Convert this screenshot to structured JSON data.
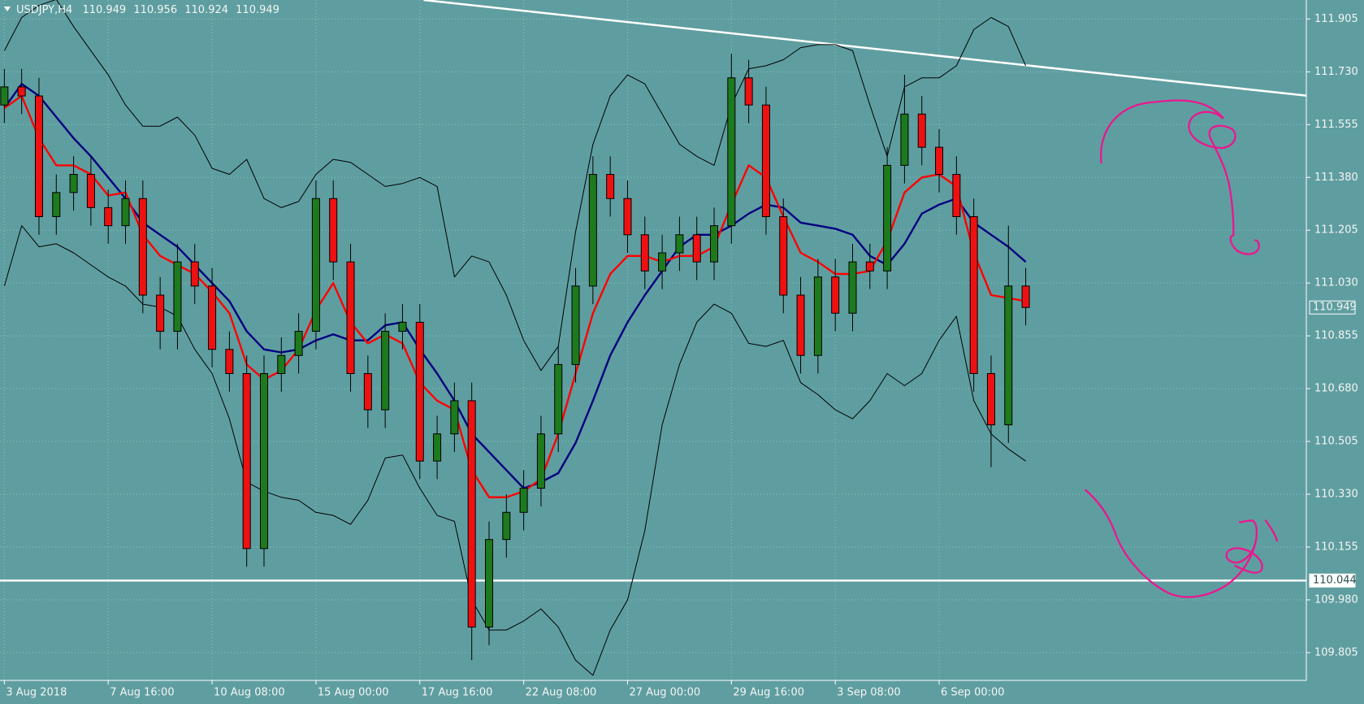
{
  "chart_data": {
    "type": "candlestick",
    "title": "USDJPY,H4",
    "ohlc": [
      110.949,
      110.956,
      110.924,
      110.949
    ],
    "categories": [
      "3 Aug 2018",
      null,
      null,
      null,
      null,
      null,
      "7 Aug 16:00",
      null,
      null,
      null,
      null,
      null,
      "10 Aug 08:00",
      null,
      null,
      null,
      null,
      null,
      "15 Aug 00:00",
      null,
      null,
      null,
      null,
      null,
      "17 Aug 16:00",
      null,
      null,
      null,
      null,
      null,
      "22 Aug 08:00",
      null,
      null,
      null,
      null,
      null,
      "27 Aug 00:00",
      null,
      null,
      null,
      null,
      null,
      "29 Aug 16:00",
      null,
      null,
      null,
      null,
      null,
      "3 Sep 08:00",
      null,
      null,
      null,
      null,
      null,
      "6 Sep 00:00",
      null,
      null,
      null,
      null,
      null
    ],
    "open": [
      111.62,
      111.68,
      111.65,
      111.25,
      111.33,
      111.39,
      111.28,
      111.22,
      111.31,
      110.99,
      110.87,
      111.1,
      111.02,
      110.81,
      110.73,
      110.15,
      110.73,
      110.79,
      110.87,
      111.31,
      111.1,
      110.73,
      110.61,
      110.87,
      110.9,
      110.44,
      110.53,
      110.64,
      109.89,
      110.18,
      110.27,
      110.35,
      110.53,
      110.76,
      111.02,
      111.39,
      111.31,
      111.19,
      111.07,
      111.13,
      111.19,
      111.1,
      111.22,
      111.71,
      111.62,
      111.25,
      110.99,
      110.79,
      111.05,
      110.93,
      111.1,
      111.07,
      111.42,
      111.59,
      111.48,
      111.39,
      111.25,
      110.73,
      110.56,
      111.02
    ],
    "high": [
      111.74,
      111.74,
      111.71,
      111.39,
      111.45,
      111.45,
      111.34,
      111.37,
      111.37,
      111.05,
      111.16,
      111.16,
      111.08,
      110.87,
      110.79,
      110.79,
      110.85,
      110.93,
      111.37,
      111.37,
      111.16,
      110.79,
      110.93,
      110.96,
      110.96,
      110.59,
      110.7,
      110.7,
      110.24,
      110.33,
      110.41,
      110.59,
      110.82,
      111.08,
      111.45,
      111.45,
      111.37,
      111.25,
      111.19,
      111.25,
      111.25,
      111.28,
      111.79,
      111.77,
      111.68,
      111.31,
      111.05,
      111.11,
      111.11,
      111.16,
      111.16,
      111.48,
      111.72,
      111.65,
      111.54,
      111.45,
      111.31,
      110.79,
      111.22,
      111.08
    ],
    "low": [
      111.56,
      111.59,
      111.19,
      111.19,
      111.27,
      111.22,
      111.16,
      111.16,
      110.93,
      110.81,
      110.81,
      110.96,
      110.75,
      110.67,
      110.09,
      110.09,
      110.67,
      110.73,
      110.81,
      111.04,
      110.67,
      110.55,
      110.55,
      110.81,
      110.38,
      110.38,
      110.47,
      109.78,
      109.83,
      110.12,
      110.21,
      110.29,
      110.47,
      110.7,
      110.96,
      111.25,
      111.13,
      111.01,
      111.01,
      111.07,
      111.04,
      111.04,
      111.16,
      111.56,
      111.19,
      110.93,
      110.73,
      110.73,
      110.87,
      110.87,
      111.01,
      111.01,
      111.36,
      111.42,
      111.33,
      111.19,
      110.67,
      110.42,
      110.5,
      110.89
    ],
    "close": [
      111.68,
      111.65,
      111.25,
      111.33,
      111.39,
      111.28,
      111.22,
      111.31,
      110.99,
      110.87,
      111.1,
      111.02,
      110.81,
      110.73,
      110.15,
      110.73,
      110.79,
      110.87,
      111.31,
      111.1,
      110.73,
      110.61,
      110.87,
      110.9,
      110.44,
      110.53,
      110.64,
      109.89,
      110.18,
      110.27,
      110.35,
      110.53,
      110.76,
      111.02,
      111.39,
      111.31,
      111.19,
      111.07,
      111.13,
      111.19,
      111.1,
      111.22,
      111.71,
      111.62,
      111.25,
      110.99,
      110.79,
      111.05,
      110.93,
      111.1,
      111.07,
      111.42,
      111.59,
      111.48,
      111.39,
      111.25,
      110.73,
      110.56,
      111.02,
      110.949
    ],
    "up_color": "#1d7a1d",
    "down_color": "#ee1111",
    "overlays": [
      {
        "color": "#000000",
        "values": [
          111.8,
          111.91,
          111.95,
          111.97,
          111.88,
          111.8,
          111.72,
          111.62,
          111.55,
          111.55,
          111.58,
          111.52,
          111.41,
          111.39,
          111.44,
          111.31,
          111.28,
          111.3,
          111.39,
          111.44,
          111.43,
          111.39,
          111.35,
          111.36,
          111.38,
          111.35,
          111.05,
          111.12,
          111.1,
          110.99,
          110.84,
          110.74,
          110.82,
          111.2,
          111.49,
          111.65,
          111.72,
          111.69,
          111.59,
          111.49,
          111.45,
          111.42,
          111.62,
          111.74,
          111.75,
          111.77,
          111.81,
          111.82,
          111.82,
          111.8,
          111.62,
          111.45,
          111.68,
          111.71,
          111.71,
          111.75,
          111.87,
          111.91,
          111.88,
          111.75
        ]
      },
      {
        "color": "#000000",
        "values": [
          111.02,
          111.22,
          111.15,
          111.16,
          111.13,
          111.09,
          111.05,
          111.02,
          110.96,
          110.95,
          110.92,
          110.81,
          110.73,
          110.58,
          110.37,
          110.34,
          110.32,
          110.31,
          110.27,
          110.26,
          110.23,
          110.31,
          110.45,
          110.46,
          110.35,
          110.26,
          110.24,
          109.98,
          109.88,
          109.88,
          109.91,
          109.95,
          109.89,
          109.78,
          109.73,
          109.88,
          109.98,
          110.21,
          110.56,
          110.76,
          110.9,
          110.96,
          110.93,
          110.83,
          110.82,
          110.84,
          110.7,
          110.66,
          110.61,
          110.58,
          110.64,
          110.73,
          110.69,
          110.73,
          110.84,
          110.92,
          110.64,
          110.53,
          110.48,
          110.44
        ]
      },
      {
        "color": "#000080",
        "values": [
          111.61,
          111.69,
          111.65,
          111.58,
          111.51,
          111.45,
          111.38,
          111.31,
          111.23,
          111.19,
          111.15,
          111.09,
          111.03,
          110.97,
          110.87,
          110.81,
          110.8,
          110.81,
          110.84,
          110.86,
          110.84,
          110.84,
          110.89,
          110.9,
          110.81,
          110.73,
          110.64,
          110.53,
          110.47,
          110.41,
          110.35,
          110.37,
          110.4,
          110.5,
          110.64,
          110.79,
          110.9,
          110.99,
          111.07,
          111.15,
          111.19,
          111.19,
          111.22,
          111.26,
          111.29,
          111.28,
          111.23,
          111.22,
          111.21,
          111.19,
          111.12,
          111.09,
          111.16,
          111.26,
          111.29,
          111.31,
          111.23,
          111.19,
          111.15,
          111.1
        ]
      },
      {
        "color": "#ff0000",
        "values": [
          111.61,
          111.65,
          111.51,
          111.42,
          111.42,
          111.39,
          111.32,
          111.33,
          111.19,
          111.12,
          111.09,
          111.06,
          111.0,
          110.93,
          110.76,
          110.71,
          110.74,
          110.81,
          110.94,
          111.03,
          110.9,
          110.83,
          110.86,
          110.83,
          110.7,
          110.64,
          110.61,
          110.41,
          110.32,
          110.32,
          110.34,
          110.38,
          110.53,
          110.73,
          110.93,
          111.06,
          111.12,
          111.12,
          111.1,
          111.12,
          111.12,
          111.15,
          111.29,
          111.42,
          111.38,
          111.25,
          111.13,
          111.1,
          111.06,
          111.06,
          111.07,
          111.17,
          111.33,
          111.38,
          111.39,
          111.35,
          111.13,
          110.99,
          110.98,
          110.97
        ]
      }
    ],
    "hlines": [
      {
        "value": 110.044,
        "color": "#ffffff"
      }
    ],
    "trendline": {
      "y": [
        111.968,
        111.651
      ],
      "color": "#ffffff"
    },
    "ylim": [
      109.713,
      111.968
    ],
    "yticks": [
      111.905,
      {
        "value": 111.73,
        "label": "111.730"
      },
      111.555,
      {
        "value": 111.38,
        "label": "111.380"
      },
      111.205,
      {
        "value": 111.03,
        "label": "111.030"
      },
      110.855,
      {
        "value": 110.68,
        "label": "110.680"
      },
      110.505,
      {
        "value": 110.33,
        "label": "110.330"
      },
      110.155,
      {
        "value": 109.98,
        "label": "109.980"
      },
      109.805
    ],
    "grid": true
  }
}
